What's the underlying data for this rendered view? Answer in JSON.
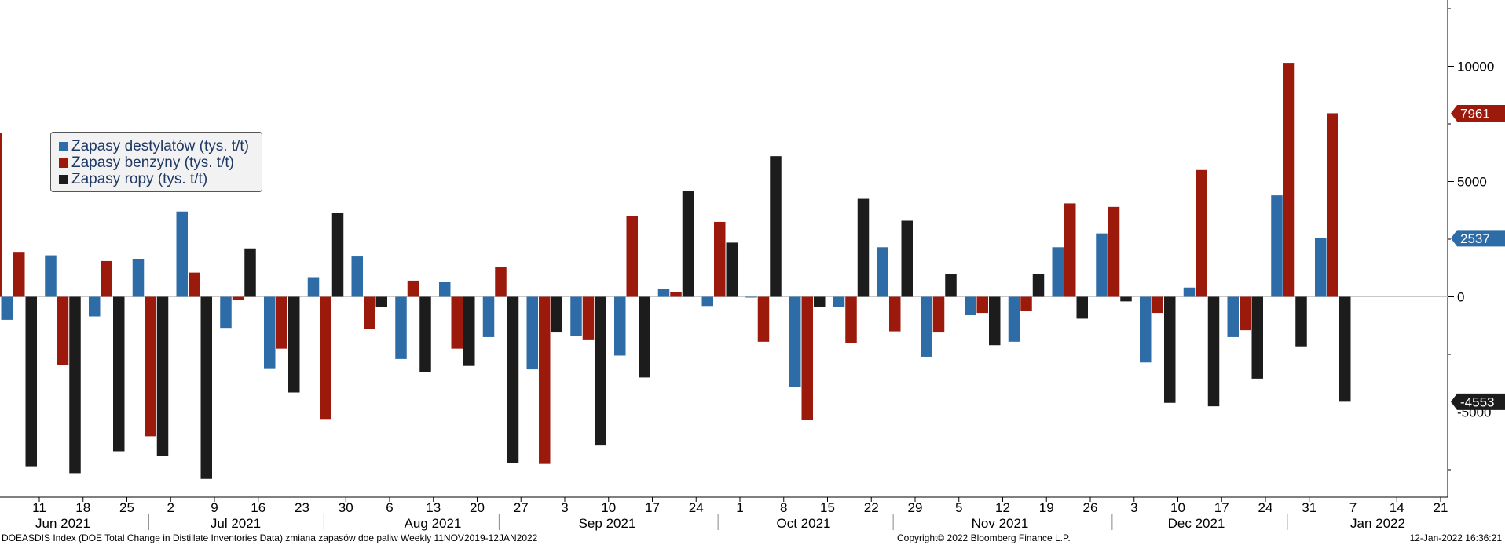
{
  "chart_data": {
    "type": "bar",
    "ylim": [
      -8700,
      12800
    ],
    "yticks": [
      10000,
      5000,
      0,
      -5000
    ],
    "grid": false,
    "legend_placement": "top-left",
    "series": [
      {
        "name": "Zapasy destylatów (tys. t/t)",
        "color": "#2e6ca8",
        "values": [
          -1000,
          1800,
          -850,
          1650,
          3700,
          -1350,
          -3100,
          850,
          1750,
          -2700,
          650,
          -1750,
          -3150,
          -1700,
          -2550,
          350,
          -400,
          0,
          -3900,
          -450,
          2150,
          -2600,
          -800,
          -1950,
          2150,
          2750,
          -2850,
          400,
          -1750,
          4400,
          2537
        ]
      },
      {
        "name": "Zapasy benzyny  (tys. t/t)",
        "color": "#9c1a0c",
        "values": [
          1950,
          -2950,
          1550,
          -6050,
          1050,
          -150,
          -2250,
          -5300,
          -1400,
          700,
          -2250,
          1300,
          -7250,
          -1850,
          3500,
          200,
          3250,
          -1950,
          -5350,
          -2000,
          -1500,
          -1550,
          -700,
          -600,
          4050,
          3900,
          -700,
          5500,
          -1450,
          10150,
          7961
        ]
      },
      {
        "name": "Zapasy ropy (tys. t/t)",
        "color": "#1c1c1c",
        "values": [
          -7350,
          -7650,
          -6700,
          -6900,
          -7900,
          2100,
          -4150,
          3650,
          -450,
          -3250,
          -3000,
          -7200,
          -1550,
          -6450,
          -3500,
          4600,
          2350,
          6100,
          -450,
          4250,
          3300,
          1000,
          -2100,
          1000,
          -950,
          -200,
          -4600,
          -4750,
          -3550,
          -2150,
          -4553
        ]
      }
    ],
    "partial_leading_bar": {
      "series": "Zapasy benzyny  (tys. t/t)",
      "value": 7100
    },
    "x_tick_labels": [
      "11",
      "18",
      "25",
      "2",
      "9",
      "16",
      "23",
      "30",
      "6",
      "13",
      "20",
      "27",
      "3",
      "10",
      "17",
      "24",
      "1",
      "8",
      "15",
      "22",
      "29",
      "5",
      "12",
      "19",
      "26",
      "3",
      "10",
      "17",
      "24",
      "31",
      "7",
      "14",
      "21"
    ],
    "month_labels": [
      "Jun 2021",
      "Jul 2021",
      "Aug 2021",
      "Sep 2021",
      "Oct 2021",
      "Nov 2021",
      "Dec 2021",
      "Jan 2022"
    ],
    "last_value_tags": [
      {
        "value": 7961,
        "label": "7961",
        "color": "#9c1a0c"
      },
      {
        "value": 2537,
        "label": "2537",
        "color": "#2e6ca8"
      },
      {
        "value": -4553,
        "label": "-4553",
        "color": "#1c1c1c"
      }
    ]
  },
  "footer": {
    "left": "DOEASDIS Index (DOE Total Change in Distillate Inventories Data) zmiana zapasów doe paliw  Weekly 11NOV2019-12JAN2022",
    "center": "Copyright© 2022 Bloomberg Finance L.P.",
    "right": "12-Jan-2022 16:36:21"
  }
}
